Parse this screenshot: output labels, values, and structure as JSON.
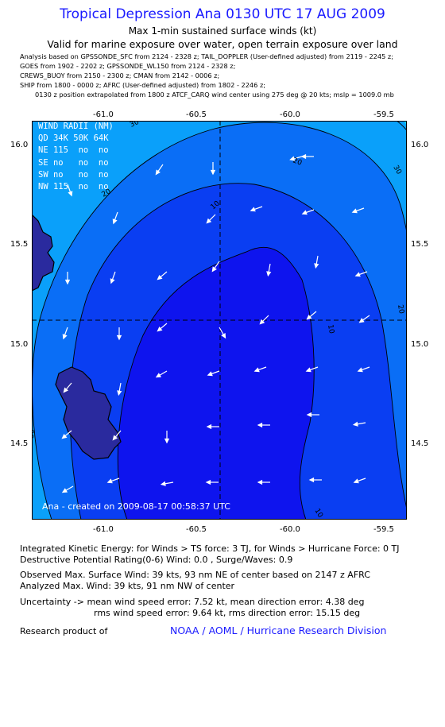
{
  "header": {
    "title": "Tropical Depression Ana 0130 UTC 17 AUG 2009",
    "subtitle": "Max 1-min sustained surface winds (kt)",
    "validity": "Valid for marine exposure over water, open terrain exposure over land"
  },
  "analysis_notes": [
    "Analysis based on  GPSSONDE_SFC from 2124 - 2328 z;  TAIL_DOPPLER (User-defined adjusted) from 2119 - 2245 z;",
    "GOES from 1902 - 2202 z;  GPSSONDE_WL150 from 2124 - 2328 z;",
    "CREWS_BUOY from 2150 - 2300 z;  CMAN from 2142 - 0006 z;",
    "SHIP from 1800 - 0000 z;  AFRC (User-defined adjusted) from 1802 - 2246 z;",
    "0130 z position extrapolated from 1800 z ATCF_CARQ wind center using 275 deg @ 20 kts; mslp = 1009.0 mb"
  ],
  "map": {
    "lon_ticks": [
      "-61.0",
      "-60.5",
      "-60.0",
      "-59.5"
    ],
    "lat_ticks": [
      "16.0",
      "15.5",
      "15.0",
      "14.5"
    ],
    "lon_range": [
      -61.39,
      -59.38
    ],
    "lat_range": [
      14.13,
      16.14
    ],
    "center": {
      "lon": -60.41,
      "lat": 15.12
    },
    "contour_labels": [
      "30",
      "20",
      "10",
      "20",
      "30",
      "10",
      "20",
      "30",
      "10"
    ],
    "wind_radii": {
      "header": [
        "WIND",
        "RADII",
        "(NM)"
      ],
      "columns": [
        "QD",
        "34K",
        "50K",
        "64K"
      ],
      "rows": [
        {
          "quad": "NE",
          "r34": "115",
          "r50": "no",
          "r64": "no"
        },
        {
          "quad": "SE",
          "r34": "no",
          "r50": "no",
          "r64": "no"
        },
        {
          "quad": "SW",
          "r34": "no",
          "r50": "no",
          "r64": "no"
        },
        {
          "quad": "NW",
          "r34": "115",
          "r50": "no",
          "r64": "no"
        }
      ]
    },
    "credit": "Ana - created on 2009-08-17 00:58:37 UTC",
    "colors": {
      "band_le10": "#0e14ee",
      "band_10_20": "#0a3ef2",
      "band_20_30": "#0a6ef6",
      "band_30_40": "#0aa0fa",
      "band_ge40": "#10d8ff",
      "land": "#2a2a9e"
    }
  },
  "stats": {
    "ike": "Integrated Kinetic Energy:  for Winds > TS force: 3 TJ,  for Winds > Hurricane Force: 0 TJ",
    "dpr": "Destructive Potential Rating(0-6)   Wind: 0.0 , Surge/Waves: 0.9",
    "obs_max": "Observed Max. Surface Wind: 39 kts, 93 nm NE of center based on 2147 z AFRC",
    "ana_max": "Analyzed Max. Wind: 39 kts, 91 nm NW of center",
    "uncert1": "Uncertainty -> mean wind speed error: 7.52 kt,   mean direction error: 4.38 deg",
    "uncert2": "rms wind speed error: 9.64 kt,   rms direction error: 15.15 deg"
  },
  "footer": {
    "label": "Research product of",
    "org": "NOAA / AOML / Hurricane Research Division"
  }
}
